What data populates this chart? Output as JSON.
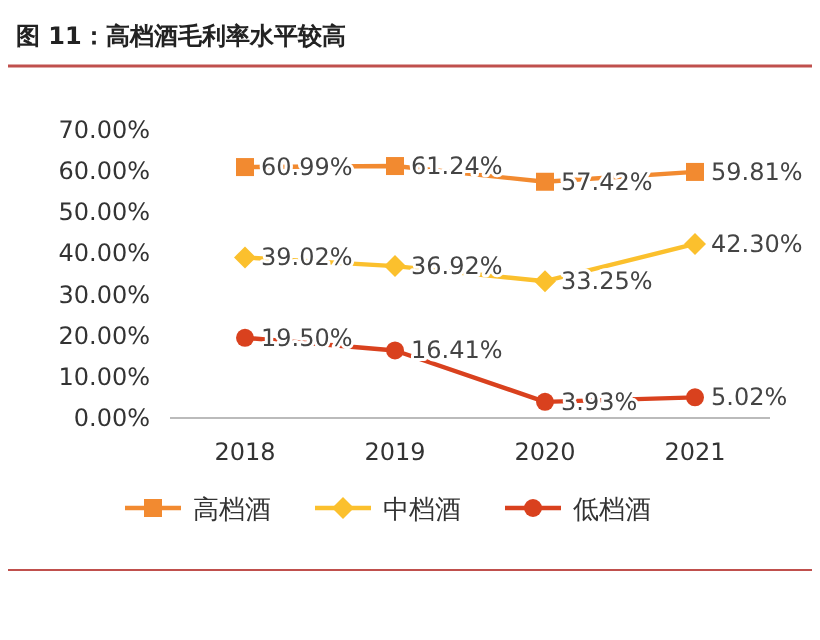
{
  "chart_data": {
    "type": "line",
    "title": "图 11：高档酒毛利率水平较高",
    "categories": [
      "2018",
      "2019",
      "2020",
      "2021"
    ],
    "series": [
      {
        "name": "高档酒",
        "color": "#f28a30",
        "marker": "square",
        "values": [
          60.99,
          61.24,
          57.42,
          59.81
        ],
        "value_labels": [
          "60.99%",
          "61.24%",
          "57.42%",
          "59.81%"
        ]
      },
      {
        "name": "中档酒",
        "color": "#fbc02d",
        "marker": "diamond",
        "values": [
          39.02,
          36.92,
          33.25,
          42.3
        ],
        "value_labels": [
          "39.02%",
          "36.92%",
          "33.25%",
          "42.30%"
        ]
      },
      {
        "name": "低档酒",
        "color": "#d9411e",
        "marker": "circle",
        "values": [
          19.5,
          16.41,
          3.93,
          5.02
        ],
        "value_labels": [
          "19.50%",
          "16.41%",
          "3.93%",
          "5.02%"
        ]
      }
    ],
    "ylim": [
      0,
      70
    ],
    "yticks": [
      {
        "value": 0,
        "label": "0.00%"
      },
      {
        "value": 10,
        "label": "10.00%"
      },
      {
        "value": 20,
        "label": "20.00%"
      },
      {
        "value": 30,
        "label": "30.00%"
      },
      {
        "value": 40,
        "label": "40.00%"
      },
      {
        "value": 50,
        "label": "50.00%"
      },
      {
        "value": 60,
        "label": "60.00%"
      },
      {
        "value": 70,
        "label": "70.00%"
      }
    ],
    "grid": false,
    "legend": "bottom"
  }
}
